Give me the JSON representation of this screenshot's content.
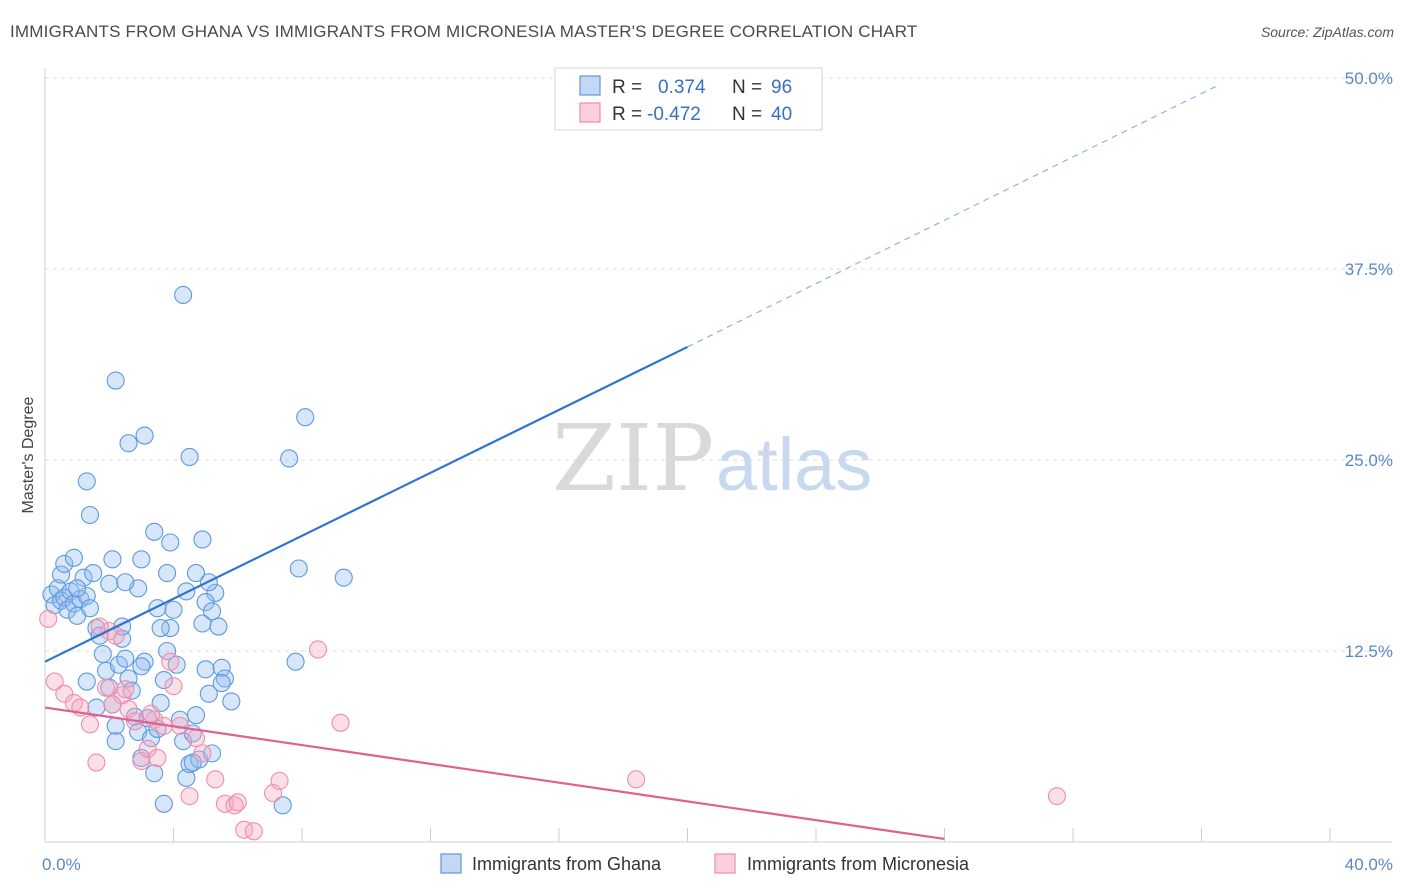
{
  "title": "IMMIGRANTS FROM GHANA VS IMMIGRANTS FROM MICRONESIA MASTER'S DEGREE CORRELATION CHART",
  "source": "Source: ZipAtlas.com",
  "watermark": {
    "zip": "ZIP",
    "atlas": "atlas"
  },
  "colors": {
    "ghana": "#5b9ae0",
    "ghana_line": "#2f74d0",
    "micronesia": "#f08cac",
    "micronesia_line": "#e0608e",
    "tick_text": "#5a87c9"
  },
  "legend": {
    "r_label": "R =",
    "n_label": "N =",
    "rows": [
      {
        "r": "0.374",
        "n": "96"
      },
      {
        "r": "-0.472",
        "n": "40"
      }
    ]
  },
  "chart_data": {
    "type": "scatter",
    "title": "IMMIGRANTS FROM GHANA VS IMMIGRANTS FROM MICRONESIA MASTER'S DEGREE CORRELATION CHART",
    "xlabel": "",
    "ylabel": "Master's Degree",
    "xlim": [
      0,
      40
    ],
    "ylim": [
      0,
      50
    ],
    "x_tick_labels": [
      {
        "v": 0,
        "label": "0.0%"
      },
      {
        "v": 40,
        "label": "40.0%"
      }
    ],
    "y_tick_labels": [
      {
        "v": 12.5,
        "label": "12.5%"
      },
      {
        "v": 25,
        "label": "25.0%"
      },
      {
        "v": 37.5,
        "label": "37.5%"
      },
      {
        "v": 50,
        "label": "50.0%"
      }
    ],
    "grid": true,
    "legend_position": "top-center",
    "series": [
      {
        "name": "Immigrants from Ghana",
        "trend": {
          "x0": 0,
          "y0": 11.8,
          "x1": 20,
          "y1": 32.4,
          "dashed_to_x": 36.5,
          "dashed_to_y": 49.5
        },
        "points": [
          [
            0.2,
            16.2
          ],
          [
            0.3,
            15.5
          ],
          [
            0.4,
            16.6
          ],
          [
            0.5,
            15.8
          ],
          [
            0.6,
            16.0
          ],
          [
            0.7,
            15.2
          ],
          [
            0.5,
            17.5
          ],
          [
            0.8,
            16.4
          ],
          [
            0.9,
            15.6
          ],
          [
            1.0,
            14.8
          ],
          [
            1.1,
            15.9
          ],
          [
            0.6,
            18.2
          ],
          [
            0.9,
            18.6
          ],
          [
            1.2,
            17.3
          ],
          [
            1.3,
            16.1
          ],
          [
            1.4,
            15.3
          ],
          [
            1.5,
            17.6
          ],
          [
            1.6,
            14.0
          ],
          [
            1.7,
            13.5
          ],
          [
            1.8,
            12.3
          ],
          [
            1.9,
            11.2
          ],
          [
            2.0,
            10.1
          ],
          [
            2.1,
            9.0
          ],
          [
            2.2,
            7.6
          ],
          [
            2.3,
            11.6
          ],
          [
            2.4,
            13.3
          ],
          [
            2.5,
            12.0
          ],
          [
            2.6,
            10.7
          ],
          [
            2.7,
            9.9
          ],
          [
            2.8,
            8.2
          ],
          [
            2.9,
            7.2
          ],
          [
            3.0,
            5.5
          ],
          [
            3.1,
            11.8
          ],
          [
            3.2,
            8.1
          ],
          [
            3.3,
            6.8
          ],
          [
            3.4,
            4.5
          ],
          [
            3.5,
            7.4
          ],
          [
            3.6,
            9.1
          ],
          [
            3.7,
            10.6
          ],
          [
            3.8,
            12.5
          ],
          [
            3.9,
            14.0
          ],
          [
            4.0,
            15.2
          ],
          [
            4.1,
            11.6
          ],
          [
            4.2,
            8.0
          ],
          [
            4.3,
            6.6
          ],
          [
            4.4,
            4.2
          ],
          [
            4.5,
            5.1
          ],
          [
            4.6,
            7.1
          ],
          [
            4.7,
            8.3
          ],
          [
            4.8,
            5.4
          ],
          [
            4.9,
            14.3
          ],
          [
            5.0,
            11.3
          ],
          [
            5.1,
            9.7
          ],
          [
            5.2,
            5.8
          ],
          [
            5.3,
            16.3
          ],
          [
            5.4,
            14.1
          ],
          [
            5.5,
            11.4
          ],
          [
            5.6,
            10.7
          ],
          [
            2.4,
            14.1
          ],
          [
            1.0,
            16.6
          ],
          [
            1.3,
            23.6
          ],
          [
            1.4,
            21.4
          ],
          [
            2.0,
            16.9
          ],
          [
            2.1,
            18.5
          ],
          [
            2.6,
            26.1
          ],
          [
            2.9,
            16.6
          ],
          [
            2.5,
            17.0
          ],
          [
            2.2,
            30.2
          ],
          [
            3.1,
            26.6
          ],
          [
            3.5,
            15.3
          ],
          [
            3.0,
            18.5
          ],
          [
            3.4,
            20.3
          ],
          [
            3.6,
            14.0
          ],
          [
            3.8,
            17.6
          ],
          [
            3.9,
            19.6
          ],
          [
            4.3,
            35.8
          ],
          [
            4.4,
            16.4
          ],
          [
            4.5,
            25.2
          ],
          [
            4.7,
            17.6
          ],
          [
            4.9,
            19.8
          ],
          [
            5.0,
            15.7
          ],
          [
            5.1,
            17.0
          ],
          [
            5.2,
            15.1
          ],
          [
            5.5,
            10.4
          ],
          [
            5.8,
            9.2
          ],
          [
            7.4,
            2.4
          ],
          [
            7.6,
            25.1
          ],
          [
            7.8,
            11.8
          ],
          [
            7.9,
            17.9
          ],
          [
            8.1,
            27.8
          ],
          [
            9.3,
            17.3
          ],
          [
            3.0,
            11.5
          ],
          [
            2.2,
            6.6
          ],
          [
            1.6,
            8.8
          ],
          [
            1.3,
            10.5
          ],
          [
            3.7,
            2.5
          ],
          [
            4.6,
            5.2
          ]
        ]
      },
      {
        "name": "Immigrants from Micronesia",
        "trend": {
          "x0": 0,
          "y0": 8.8,
          "x1": 28,
          "y1": 0.2
        },
        "points": [
          [
            0.1,
            14.6
          ],
          [
            0.3,
            10.5
          ],
          [
            0.6,
            9.7
          ],
          [
            0.9,
            9.1
          ],
          [
            1.1,
            8.8
          ],
          [
            1.4,
            7.7
          ],
          [
            1.6,
            5.2
          ],
          [
            1.9,
            10.1
          ],
          [
            2.0,
            13.8
          ],
          [
            2.2,
            13.5
          ],
          [
            2.4,
            9.6
          ],
          [
            2.5,
            10.0
          ],
          [
            2.6,
            8.7
          ],
          [
            2.8,
            7.9
          ],
          [
            3.0,
            5.3
          ],
          [
            3.2,
            6.1
          ],
          [
            3.4,
            8.0
          ],
          [
            3.5,
            5.5
          ],
          [
            3.7,
            7.6
          ],
          [
            3.9,
            11.8
          ],
          [
            4.0,
            10.2
          ],
          [
            4.2,
            7.6
          ],
          [
            4.5,
            3.0
          ],
          [
            4.7,
            6.8
          ],
          [
            4.9,
            5.8
          ],
          [
            5.3,
            4.1
          ],
          [
            5.6,
            2.5
          ],
          [
            5.9,
            2.4
          ],
          [
            6.2,
            0.8
          ],
          [
            6.5,
            0.7
          ],
          [
            7.1,
            3.2
          ],
          [
            7.3,
            4.0
          ],
          [
            8.5,
            12.6
          ],
          [
            9.2,
            7.8
          ],
          [
            18.4,
            4.1
          ],
          [
            31.5,
            3.0
          ],
          [
            1.7,
            14.1
          ],
          [
            2.1,
            9.0
          ],
          [
            3.3,
            8.4
          ],
          [
            6.0,
            2.6
          ]
        ]
      }
    ]
  },
  "bottom_legend": [
    {
      "label": "Immigrants from Ghana"
    },
    {
      "label": "Immigrants from Micronesia"
    }
  ]
}
